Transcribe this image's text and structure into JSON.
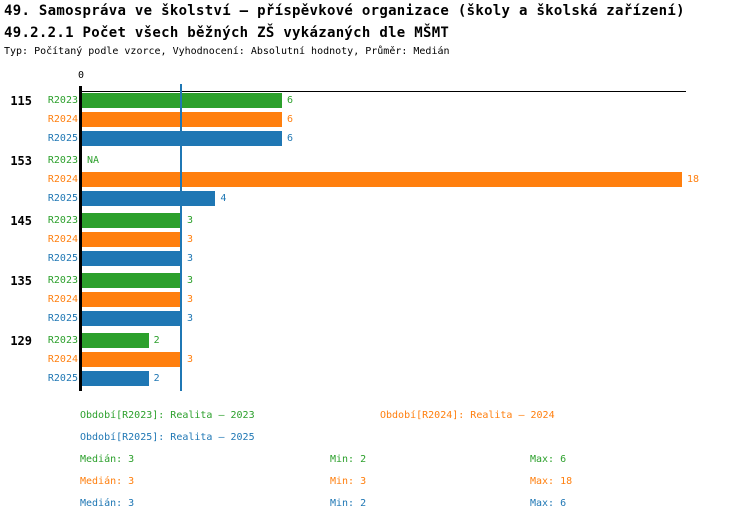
{
  "header": {
    "title": "49. Samospráva ve školství – příspěvkové organizace (školy a školská zařízení)",
    "subtitle": "49.2.2.1 Počet všech běžných ZŠ vykázaných dle MŠMT",
    "meta": "Typ: Počítaný podle vzorce, Vyhodnocení: Absolutní hodnoty, Průměr: Medián"
  },
  "chart_data": {
    "type": "bar",
    "orientation": "horizontal",
    "x_axis": {
      "min": 0,
      "max": 18,
      "tick_labels": [
        "0"
      ],
      "position": "top"
    },
    "median_line": {
      "value": 3,
      "color": "#1f77b4"
    },
    "axis_color": "#000000",
    "series": [
      {
        "name": "R2023",
        "color": "#2ca02c"
      },
      {
        "name": "R2024",
        "color": "#ff7f0e"
      },
      {
        "name": "R2025",
        "color": "#1f77b4"
      }
    ],
    "groups": [
      {
        "label": "115",
        "values": [
          6,
          6,
          6
        ],
        "value_labels": [
          "6",
          "6",
          "6"
        ]
      },
      {
        "label": "153",
        "values": [
          null,
          18,
          4
        ],
        "value_labels": [
          "NA",
          "18",
          "4"
        ]
      },
      {
        "label": "145",
        "values": [
          3,
          3,
          3
        ],
        "value_labels": [
          "3",
          "3",
          "3"
        ]
      },
      {
        "label": "135",
        "values": [
          3,
          3,
          3
        ],
        "value_labels": [
          "3",
          "3",
          "3"
        ]
      },
      {
        "label": "129",
        "values": [
          2,
          3,
          2
        ],
        "value_labels": [
          "2",
          "3",
          "2"
        ]
      }
    ]
  },
  "legend": {
    "items": [
      {
        "text": "Období[R2023]: Realita – 2023",
        "color": "#2ca02c"
      },
      {
        "text": "Období[R2024]: Realita – 2024",
        "color": "#ff7f0e"
      },
      {
        "text": "Období[R2025]: Realita – 2025",
        "color": "#1f77b4"
      }
    ]
  },
  "stats": {
    "rows": [
      {
        "median": "Medián: 3",
        "min": "Min: 2",
        "max": "Max: 6",
        "color": "#2ca02c"
      },
      {
        "median": "Medián: 3",
        "min": "Min: 3",
        "max": "Max: 18",
        "color": "#ff7f0e"
      },
      {
        "median": "Medián: 3",
        "min": "Min: 2",
        "max": "Max: 6",
        "color": "#1f77b4"
      }
    ]
  }
}
